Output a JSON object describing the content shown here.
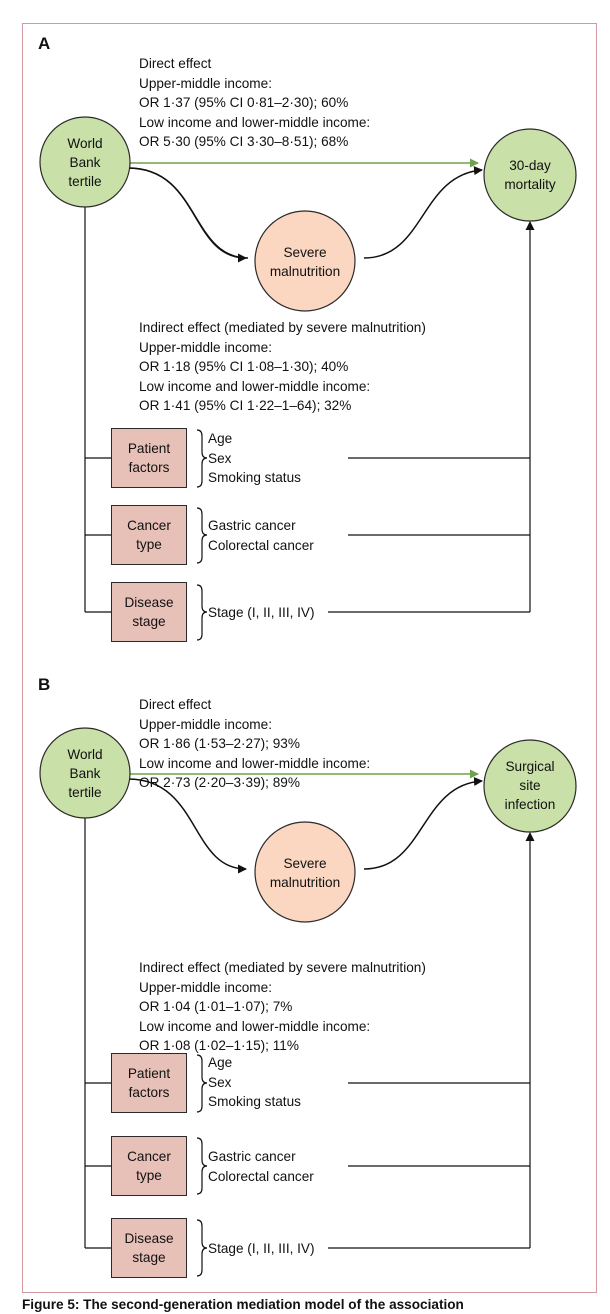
{
  "panels": [
    {
      "label": "A",
      "exposure": [
        "World",
        "Bank",
        "tertile"
      ],
      "outcome": [
        "30-day",
        "mortality"
      ],
      "mediator": [
        "Severe",
        "malnutrition"
      ],
      "direct_effect": [
        "Direct effect",
        "Upper-middle income:",
        "OR 1·37 (95% CI 0·81–2·30); 60%",
        "Low income and lower-middle income:",
        "OR 5·30 (95% CI 3·30–8·51); 68%"
      ],
      "indirect_effect": [
        "Indirect effect (mediated by severe malnutrition)",
        "Upper-middle income:",
        "OR 1·18 (95% CI 1·08–1·30); 40%",
        "Low income and lower-middle income:",
        "OR 1·41 (95% CI 1·22–1–64); 32%"
      ],
      "covariates": [
        {
          "box": [
            "Patient",
            "factors"
          ],
          "items": [
            "Age",
            "Sex",
            "Smoking status"
          ]
        },
        {
          "box": [
            "Cancer",
            "type"
          ],
          "items": [
            "Gastric cancer",
            "Colorectal cancer"
          ]
        },
        {
          "box": [
            "Disease",
            "stage"
          ],
          "items": [
            "Stage (I, II, III, IV)"
          ]
        }
      ]
    },
    {
      "label": "B",
      "exposure": [
        "World",
        "Bank",
        "tertile"
      ],
      "outcome": [
        "Surgical",
        "site",
        "infection"
      ],
      "mediator": [
        "Severe",
        "malnutrition"
      ],
      "direct_effect": [
        "Direct effect",
        "Upper-middle income:",
        "OR 1·86 (1·53–2·27); 93%",
        "Low income and lower-middle income:",
        "OR 2·73 (2·20–3·39); 89%"
      ],
      "indirect_effect": [
        "Indirect effect (mediated by severe malnutrition)",
        "Upper-middle income:",
        "OR 1·04 (1·01–1·07); 7%",
        "Low income and lower-middle income:",
        "OR 1·08 (1·02–1·15); 11%"
      ],
      "covariates": [
        {
          "box": [
            "Patient",
            "factors"
          ],
          "items": [
            "Age",
            "Sex",
            "Smoking status"
          ]
        },
        {
          "box": [
            "Cancer",
            "type"
          ],
          "items": [
            "Gastric cancer",
            "Colorectal cancer"
          ]
        },
        {
          "box": [
            "Disease",
            "stage"
          ],
          "items": [
            "Stage (I, II, III, IV)"
          ]
        }
      ]
    }
  ],
  "caption": "Figure 5: The second-generation mediation model of the association",
  "colors": {
    "green_node": "#c9e0a8",
    "mediator_node": "#fbd7c2",
    "covariate_box": "#e7c0b7",
    "direct_arrow": "#6fa24a",
    "frame": "#d29aa0"
  }
}
